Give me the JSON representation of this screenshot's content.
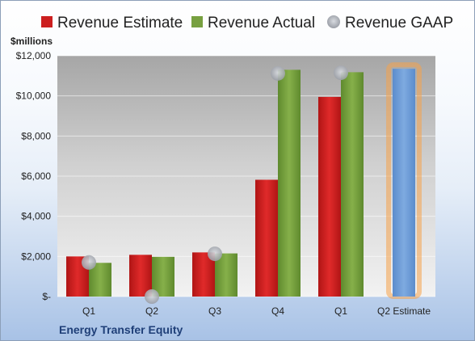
{
  "chart_data": {
    "type": "bar",
    "ylabel": "$millions",
    "company": "Energy Transfer Equity",
    "categories": [
      "Q1",
      "Q2",
      "Q3",
      "Q4",
      "Q1",
      "Q2 Estimate"
    ],
    "ylim": [
      0,
      12000
    ],
    "yticks": [
      0,
      2000,
      4000,
      6000,
      8000,
      10000,
      12000
    ],
    "ytick_labels": [
      "$-",
      "$2,000",
      "$4,000",
      "$6,000",
      "$8,000",
      "$10,000",
      "$12,000"
    ],
    "grid": true,
    "legend_position": "top",
    "series": [
      {
        "name": "Revenue Estimate",
        "kind": "bar",
        "color": "#cc1f1f",
        "values": [
          2000,
          2080,
          2200,
          5820,
          9950,
          null
        ]
      },
      {
        "name": "Revenue Actual",
        "kind": "bar",
        "color": "#77a040",
        "values": [
          1680,
          1980,
          2150,
          11300,
          11180,
          null
        ]
      },
      {
        "name": "Revenue GAAP",
        "kind": "point",
        "color": "#b4b8c0",
        "values": [
          1700,
          0,
          2130,
          11120,
          11150,
          null
        ]
      }
    ],
    "forecast": {
      "category": "Q2 Estimate",
      "value": 11350,
      "color": "#6b9bd6",
      "highlight_color": "#f5a24a"
    }
  }
}
